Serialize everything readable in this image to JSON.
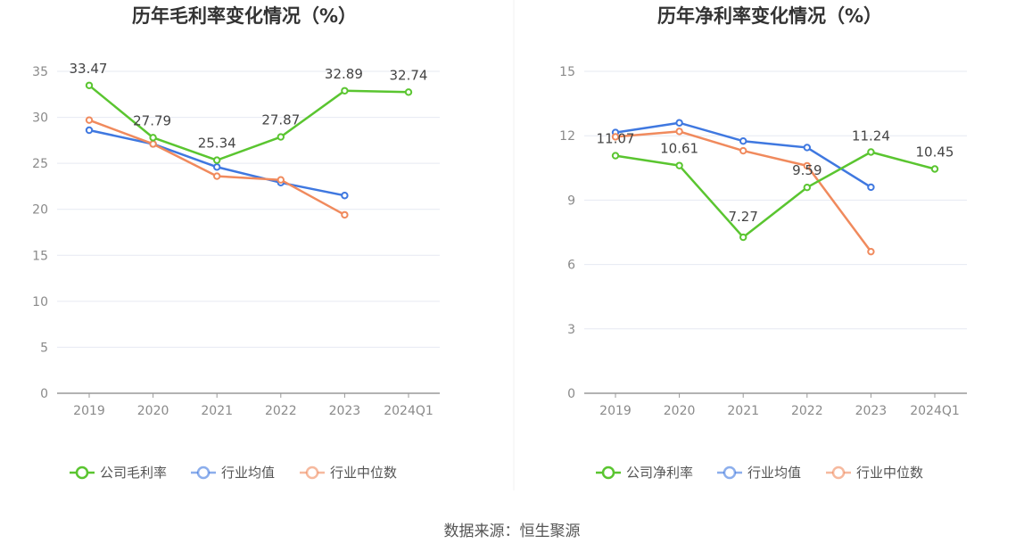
{
  "chart_data": [
    {
      "type": "line",
      "title": "历年毛利率变化情况（%）",
      "categories": [
        "2019",
        "2020",
        "2021",
        "2022",
        "2023",
        "2024Q1"
      ],
      "y_ticks": [
        "0",
        "5",
        "10",
        "15",
        "20",
        "25",
        "30",
        "35"
      ],
      "ylim": [
        0,
        35
      ],
      "grid": true,
      "legend_position": "bottom",
      "series": [
        {
          "name": "公司毛利率",
          "color": "#5ac530",
          "values": [
            33.47,
            27.79,
            25.34,
            27.87,
            32.89,
            32.74
          ],
          "labels": [
            "33.47",
            "27.79",
            "25.34",
            "27.87",
            "32.89",
            "32.74"
          ]
        },
        {
          "name": "行业均值",
          "color": "#3f78e0",
          "values": [
            28.6,
            27.1,
            24.6,
            22.9,
            21.5,
            null
          ]
        },
        {
          "name": "行业中位数",
          "color": "#f08a5d",
          "values": [
            29.7,
            27.1,
            23.6,
            23.2,
            19.4,
            null
          ]
        }
      ]
    },
    {
      "type": "line",
      "title": "历年净利率变化情况（%）",
      "categories": [
        "2019",
        "2020",
        "2021",
        "2022",
        "2023",
        "2024Q1"
      ],
      "y_ticks": [
        "0",
        "3",
        "6",
        "9",
        "12",
        "15"
      ],
      "ylim": [
        0,
        15
      ],
      "grid": true,
      "legend_position": "bottom",
      "series": [
        {
          "name": "公司净利率",
          "color": "#5ac530",
          "values": [
            11.07,
            10.61,
            7.27,
            9.59,
            11.24,
            10.45
          ],
          "labels": [
            "11.07",
            "10.61",
            "7.27",
            "9.59",
            "11.24",
            "10.45"
          ]
        },
        {
          "name": "行业均值",
          "color": "#3f78e0",
          "values": [
            12.15,
            12.6,
            11.75,
            11.45,
            9.6,
            null
          ]
        },
        {
          "name": "行业中位数",
          "color": "#f08a5d",
          "values": [
            11.95,
            12.2,
            11.3,
            10.6,
            6.6,
            null
          ]
        }
      ]
    }
  ],
  "footer": {
    "source": "数据来源：恒生聚源"
  }
}
